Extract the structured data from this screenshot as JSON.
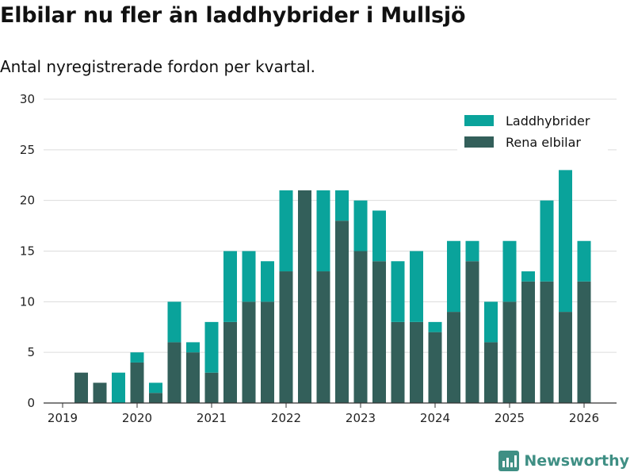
{
  "chart_data": {
    "type": "bar",
    "stacked": true,
    "title": "Elbilar nu fler än laddhybrider i Mullsjö",
    "subtitle": "Antal nyregistrerade fordon per kvartal.",
    "xlabel": "",
    "ylabel": "",
    "ylim": [
      0,
      30
    ],
    "yticks": [
      0,
      5,
      10,
      15,
      20,
      25,
      30
    ],
    "xticks": [
      "2019",
      "2020",
      "2021",
      "2022",
      "2023",
      "2024",
      "2025",
      "2026"
    ],
    "xlim": [
      2019.0,
      2026.5
    ],
    "legend_position": "top-right",
    "x": [
      2019.25,
      2019.5,
      2019.75,
      2020.0,
      2020.25,
      2020.5,
      2020.75,
      2021.0,
      2021.25,
      2021.5,
      2021.75,
      2022.0,
      2022.25,
      2022.5,
      2022.75,
      2023.0,
      2023.25,
      2023.5,
      2023.75,
      2024.0,
      2024.25,
      2024.5,
      2024.75,
      2025.0,
      2025.25,
      2025.5,
      2025.75,
      2026.0
    ],
    "series": [
      {
        "name": "Rena elbilar",
        "color": "#335f5a",
        "values": [
          3,
          2,
          0,
          4,
          1,
          6,
          5,
          3,
          8,
          10,
          10,
          13,
          21,
          13,
          18,
          15,
          14,
          8,
          8,
          7,
          9,
          14,
          6,
          10,
          12,
          12,
          9,
          12
        ]
      },
      {
        "name": "Laddhybrider",
        "color": "#0aa39b",
        "values": [
          0,
          0,
          3,
          1,
          1,
          4,
          1,
          5,
          7,
          5,
          4,
          8,
          0,
          8,
          3,
          5,
          5,
          6,
          7,
          1,
          7,
          2,
          4,
          6,
          1,
          8,
          14,
          4
        ]
      }
    ]
  },
  "brand": {
    "name": "Newsworthy"
  }
}
